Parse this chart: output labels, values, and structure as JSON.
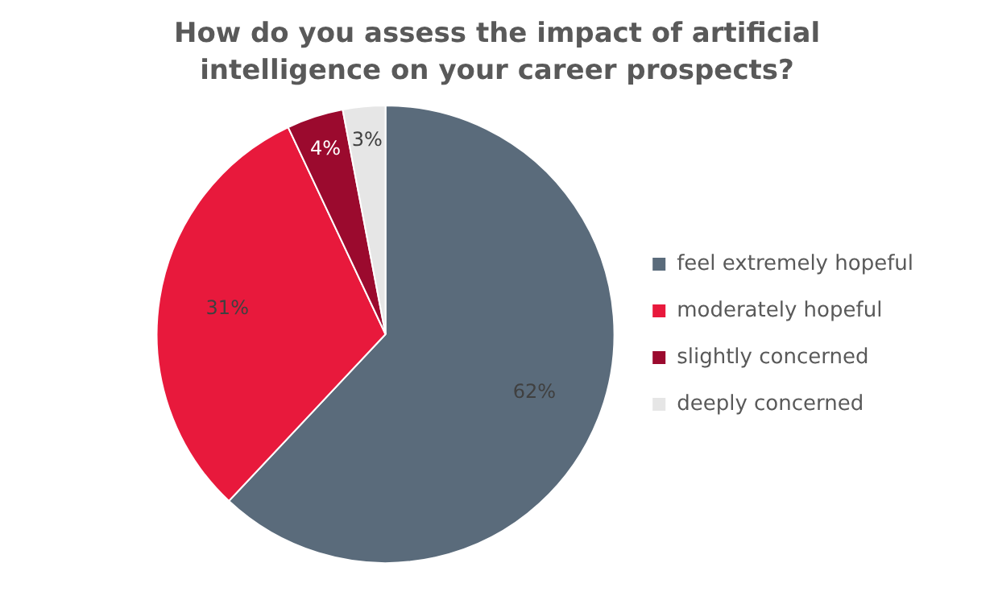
{
  "chart_data": {
    "type": "pie",
    "title": "How do you assess the impact of artificial intelligence on your career prospects?",
    "categories": [
      "feel extremely hopeful",
      "moderately hopeful",
      "slightly concerned",
      "deeply concerned"
    ],
    "values": [
      62,
      31,
      4,
      3
    ],
    "colors": [
      "#5a6b7b",
      "#e8193c",
      "#9b0a2e",
      "#e6e6e6"
    ],
    "value_labels": [
      "62%",
      "31%",
      "4%",
      "3%"
    ],
    "legend": "right"
  }
}
